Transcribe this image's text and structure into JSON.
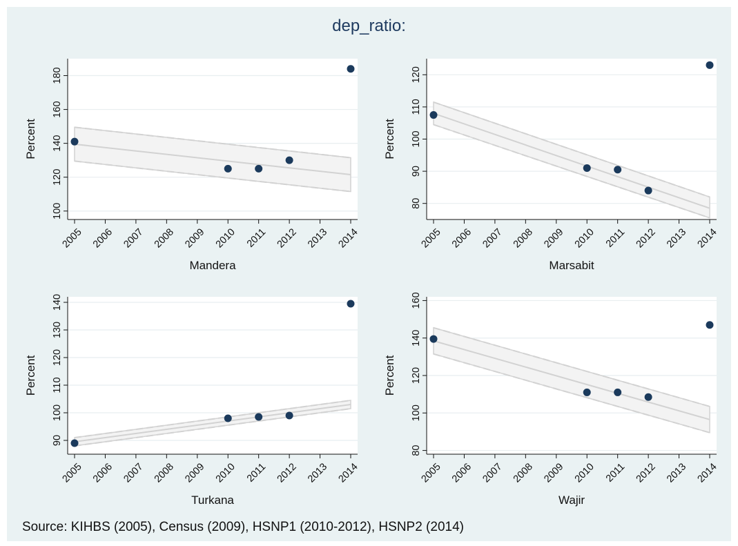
{
  "title": "dep_ratio:",
  "source": "Source: KIHBS (2005), Census (2009), HSNP1 (2010-2012), HSNP2 (2014)",
  "colors": {
    "background": "#eaf2f3",
    "plot": "#ffffff",
    "marker": "#1b3a5c",
    "fit": "#d2d2d2",
    "title": "#1e3a5f"
  },
  "chart_data": [
    {
      "type": "scatter",
      "title": "Mandera",
      "xlabel": "Mandera",
      "ylabel": "Percent",
      "x_ticks": [
        2005,
        2006,
        2007,
        2008,
        2009,
        2010,
        2011,
        2012,
        2013,
        2014
      ],
      "y_ticks": [
        100,
        120,
        140,
        160,
        180
      ],
      "xlim": [
        2005,
        2014
      ],
      "ylim": [
        95,
        190
      ],
      "grid": true,
      "points": [
        {
          "x": 2005,
          "y": 141
        },
        {
          "x": 2010,
          "y": 125
        },
        {
          "x": 2011,
          "y": 125
        },
        {
          "x": 2012,
          "y": 130
        },
        {
          "x": 2014,
          "y": 184
        }
      ],
      "fit": {
        "x": [
          2005,
          2014
        ],
        "y": [
          139.5,
          121.5
        ],
        "lower": [
          129.5,
          111.5
        ],
        "upper": [
          149.5,
          131.5
        ]
      }
    },
    {
      "type": "scatter",
      "title": "Marsabit",
      "xlabel": "Marsabit",
      "ylabel": "Percent",
      "x_ticks": [
        2005,
        2006,
        2007,
        2008,
        2009,
        2010,
        2011,
        2012,
        2013,
        2014
      ],
      "y_ticks": [
        80,
        90,
        100,
        110,
        120
      ],
      "xlim": [
        2005,
        2014
      ],
      "ylim": [
        75,
        125
      ],
      "grid": true,
      "points": [
        {
          "x": 2005,
          "y": 107.5
        },
        {
          "x": 2010,
          "y": 91
        },
        {
          "x": 2011,
          "y": 90.5
        },
        {
          "x": 2012,
          "y": 84
        },
        {
          "x": 2014,
          "y": 123
        }
      ],
      "fit": {
        "x": [
          2005,
          2014
        ],
        "y": [
          108,
          78.5
        ],
        "lower": [
          104.5,
          75.5
        ],
        "upper": [
          111.5,
          82
        ]
      }
    },
    {
      "type": "scatter",
      "title": "Turkana",
      "xlabel": "Turkana",
      "ylabel": "Percent",
      "x_ticks": [
        2005,
        2006,
        2007,
        2008,
        2009,
        2010,
        2011,
        2012,
        2013,
        2014
      ],
      "y_ticks": [
        90,
        100,
        110,
        120,
        130,
        140
      ],
      "xlim": [
        2005,
        2014
      ],
      "ylim": [
        85,
        142
      ],
      "grid": true,
      "points": [
        {
          "x": 2005,
          "y": 89
        },
        {
          "x": 2010,
          "y": 98
        },
        {
          "x": 2011,
          "y": 98.5
        },
        {
          "x": 2012,
          "y": 99
        },
        {
          "x": 2014,
          "y": 139.5
        }
      ],
      "fit": {
        "x": [
          2005,
          2014
        ],
        "y": [
          89.5,
          103
        ],
        "lower": [
          88,
          101.5
        ],
        "upper": [
          91,
          104.5
        ]
      }
    },
    {
      "type": "scatter",
      "title": "Wajir",
      "xlabel": "Wajir",
      "ylabel": "Percent",
      "x_ticks": [
        2005,
        2006,
        2007,
        2008,
        2009,
        2010,
        2011,
        2012,
        2013,
        2014
      ],
      "y_ticks": [
        80,
        100,
        120,
        140,
        160
      ],
      "xlim": [
        2005,
        2014
      ],
      "ylim": [
        78,
        162
      ],
      "grid": true,
      "points": [
        {
          "x": 2005,
          "y": 139.5
        },
        {
          "x": 2010,
          "y": 111
        },
        {
          "x": 2011,
          "y": 111
        },
        {
          "x": 2012,
          "y": 108.5
        },
        {
          "x": 2014,
          "y": 147
        }
      ],
      "fit": {
        "x": [
          2005,
          2014
        ],
        "y": [
          138.5,
          96.5
        ],
        "lower": [
          131.5,
          89.5
        ],
        "upper": [
          145.5,
          103.5
        ]
      }
    }
  ]
}
